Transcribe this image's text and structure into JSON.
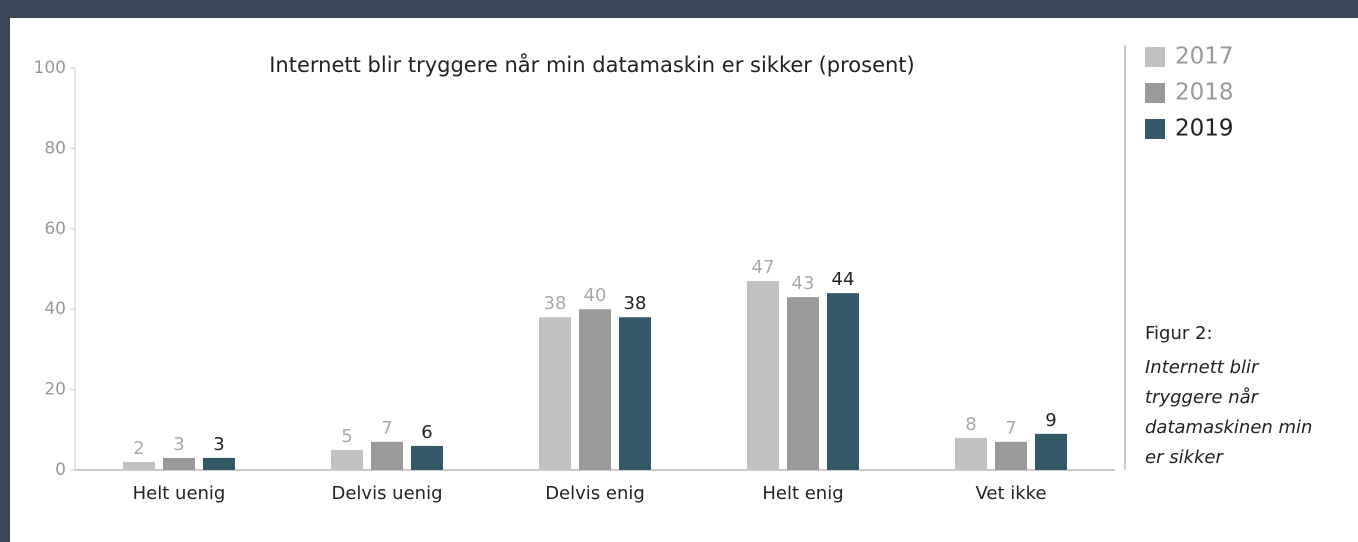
{
  "chart_data": {
    "type": "bar",
    "title": "Internett blir tryggere når min datamaskin er sikker (prosent)",
    "categories": [
      "Helt uenig",
      "Delvis uenig",
      "Delvis enig",
      "Helt enig",
      "Vet ikke"
    ],
    "series": [
      {
        "name": "2017",
        "color": "#c1c1c1",
        "label_color": "#aaaaaa",
        "values": [
          2,
          5,
          38,
          47,
          8
        ]
      },
      {
        "name": "2018",
        "color": "#9a9a9a",
        "label_color": "#aaaaaa",
        "values": [
          3,
          7,
          40,
          43,
          7
        ]
      },
      {
        "name": "2019",
        "color": "#355868",
        "label_color": "#222222",
        "values": [
          3,
          6,
          38,
          44,
          9
        ]
      }
    ],
    "ylim": [
      0,
      100
    ],
    "yticks": [
      0,
      20,
      40,
      60,
      80,
      100
    ],
    "grid": false,
    "legend": "top-right",
    "caption_title": "Figur 2:",
    "caption_lines": [
      "Internett blir",
      "tryggere når",
      "datamaskinen min",
      "er sikker"
    ]
  }
}
